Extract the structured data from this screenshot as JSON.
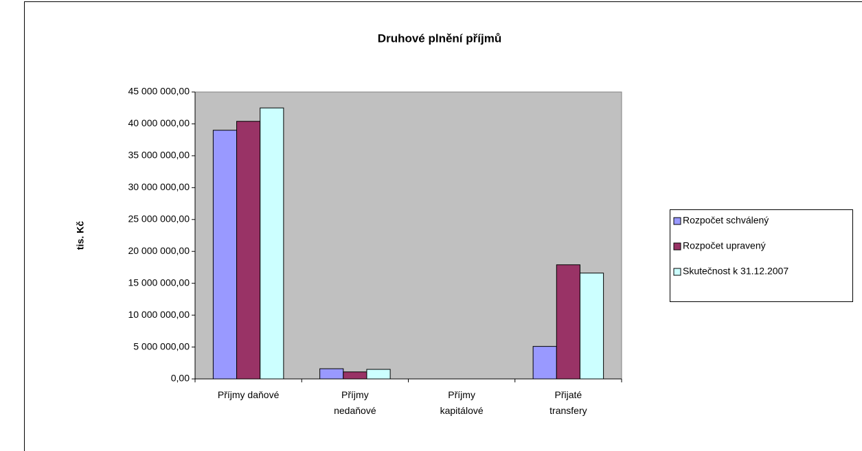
{
  "chart_data": {
    "type": "bar",
    "title": "Druhové plnění příjmů",
    "y_label": "tis. Kč",
    "categories": [
      "Příjmy daňové",
      "Příjmy\nnedaňové",
      "Příjmy\nkapitálové",
      "Přijaté\ntransfery"
    ],
    "series": [
      {
        "name": "Rozpočet schválený",
        "color": "#9999ff",
        "values": [
          39000000,
          1600000,
          0,
          5100000
        ]
      },
      {
        "name": "Rozpočet upravený",
        "color": "#993366",
        "values": [
          40400000,
          1100000,
          0,
          17900000
        ]
      },
      {
        "name": "Skutečnost k 31.12.2007",
        "color": "#ccffff",
        "values": [
          42500000,
          1500000,
          0,
          16600000
        ]
      }
    ],
    "ylim": [
      0,
      45000000
    ],
    "yticks": [
      {
        "value": 0,
        "label": "0,00"
      },
      {
        "value": 5000000,
        "label": "5 000 000,00"
      },
      {
        "value": 10000000,
        "label": "10 000 000,00"
      },
      {
        "value": 15000000,
        "label": "15 000 000,00"
      },
      {
        "value": 20000000,
        "label": "20 000 000,00"
      },
      {
        "value": 25000000,
        "label": "25 000 000,00"
      },
      {
        "value": 30000000,
        "label": "30 000 000,00"
      },
      {
        "value": 35000000,
        "label": "35 000 000,00"
      },
      {
        "value": 40000000,
        "label": "40 000 000,00"
      },
      {
        "value": 45000000,
        "label": "45 000 000,00"
      }
    ],
    "grid": false,
    "plot_background": "#c0c0c0",
    "legend": "right"
  }
}
